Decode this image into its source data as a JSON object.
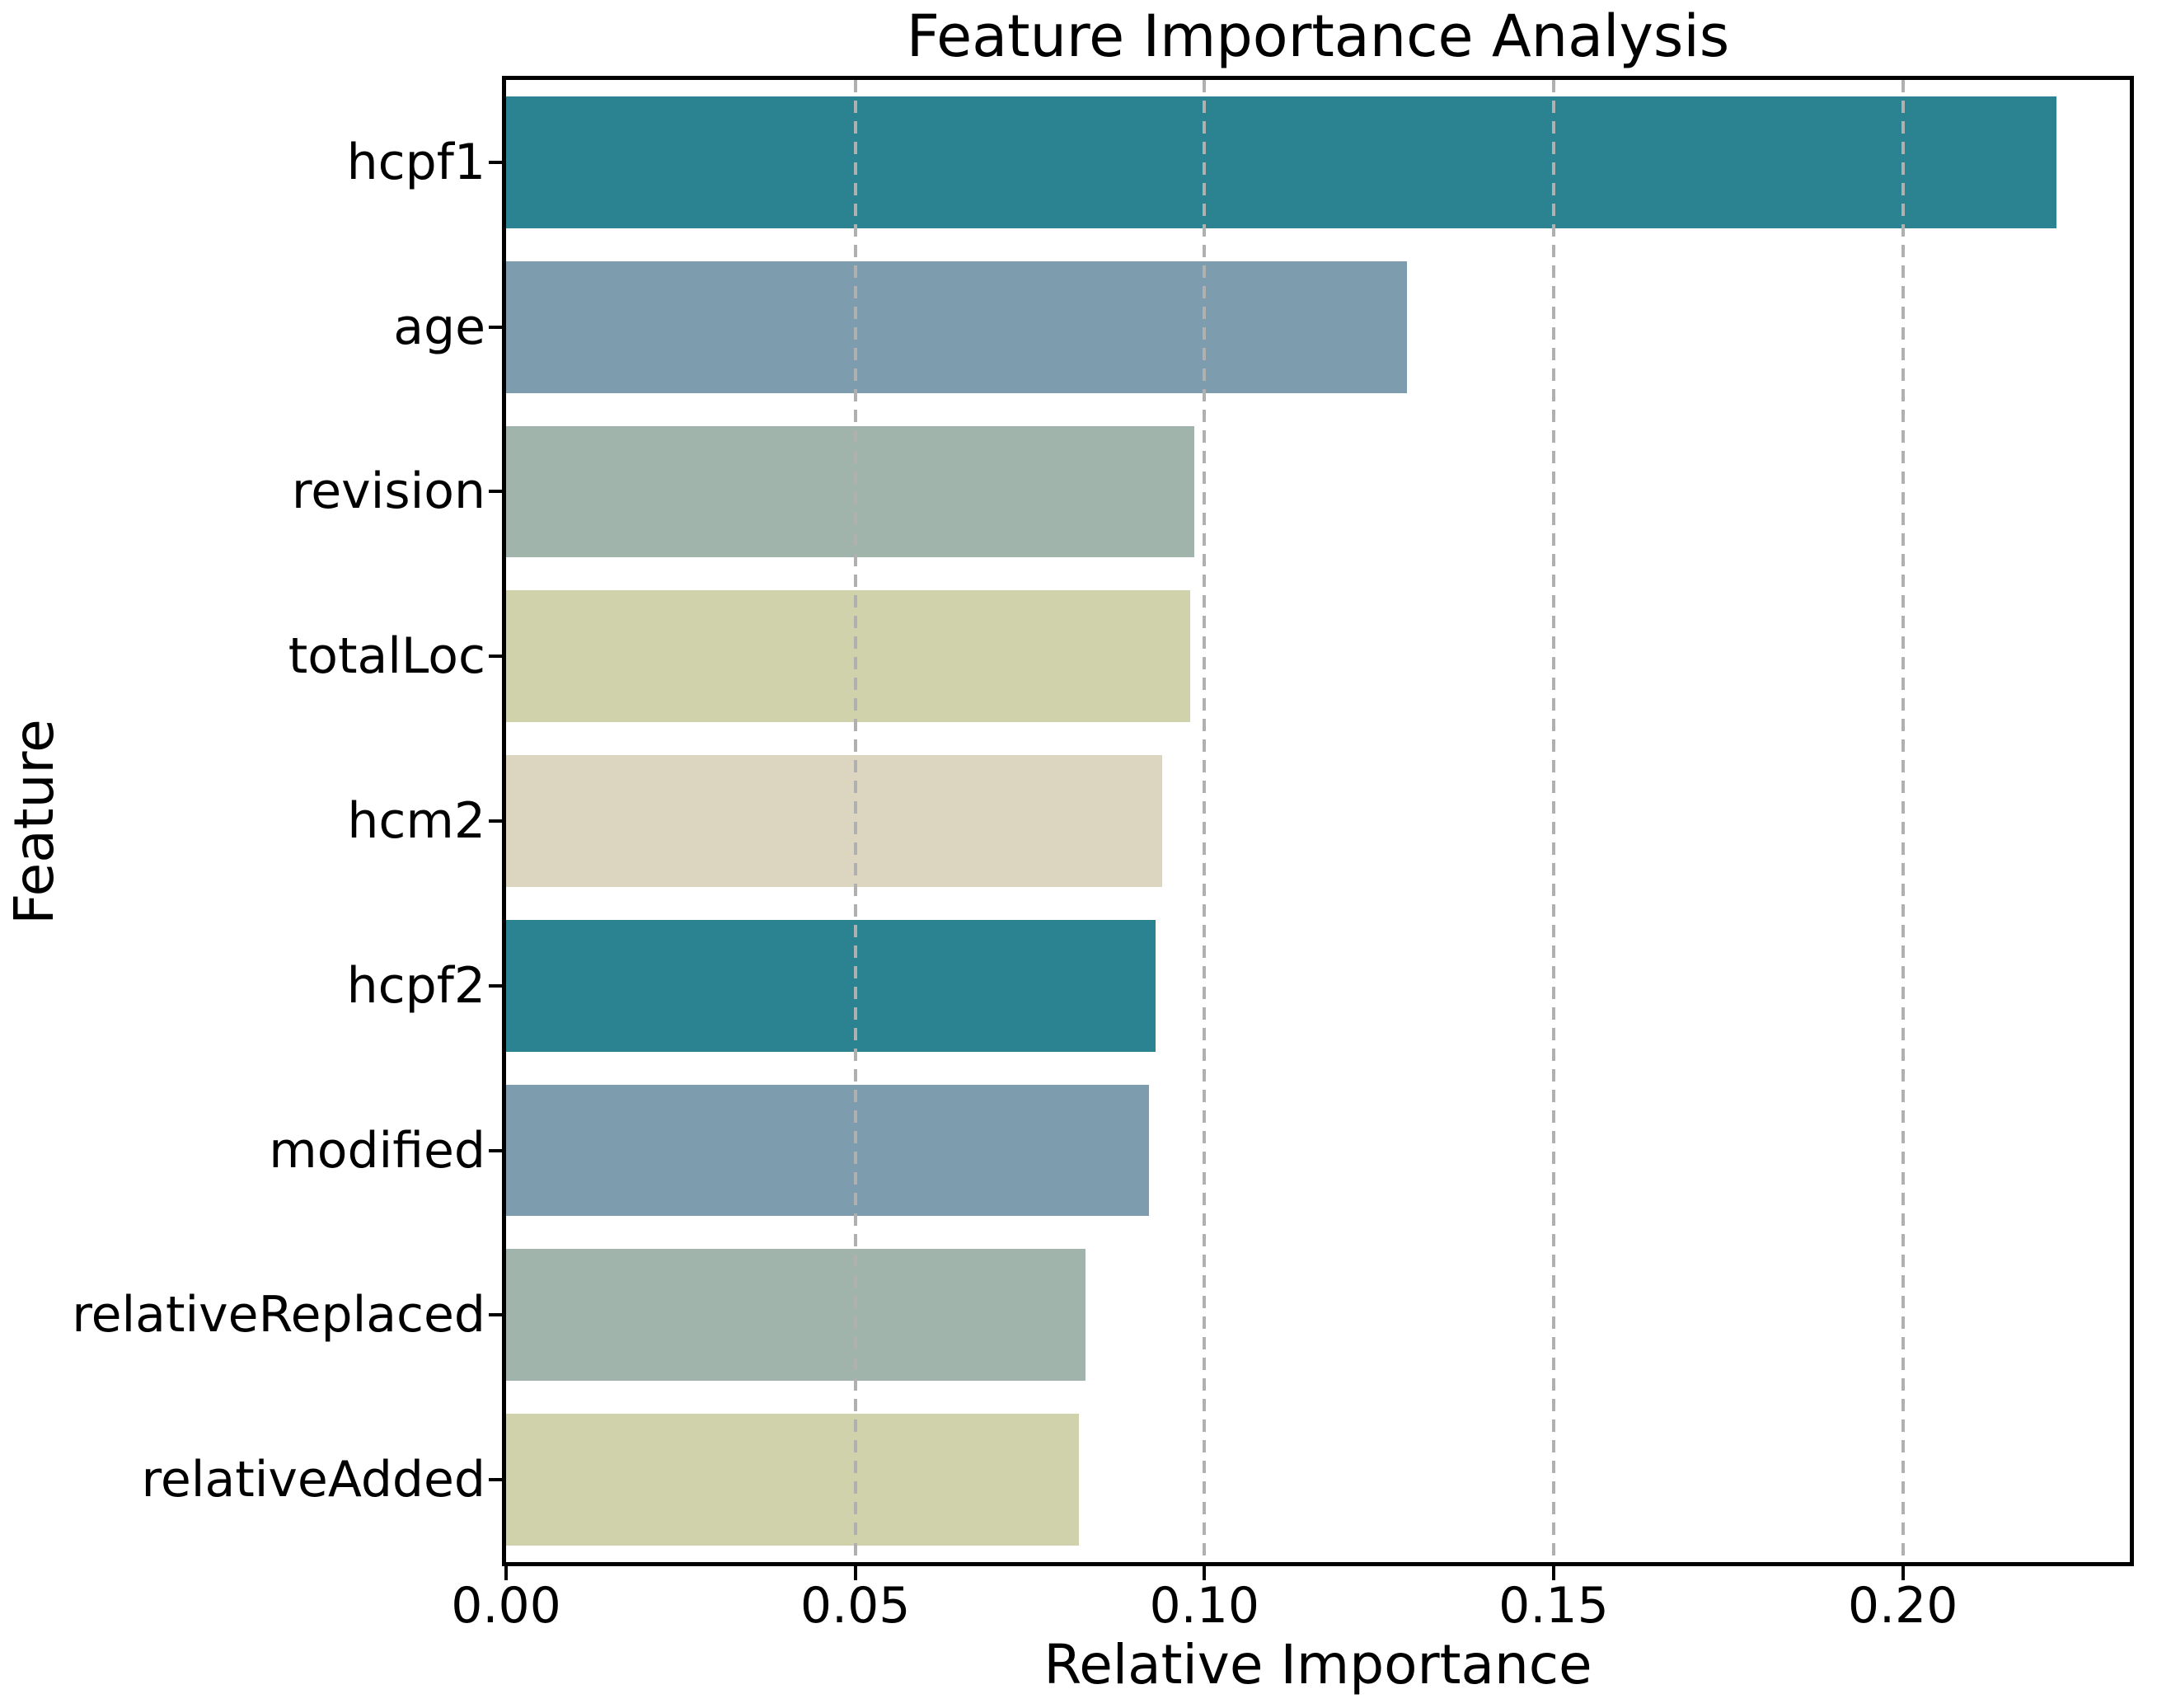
{
  "chart_data": {
    "type": "bar",
    "orientation": "horizontal",
    "title": "Feature Importance Analysis",
    "xlabel": "Relative Importance",
    "ylabel": "Feature",
    "categories": [
      "hcpf1",
      "age",
      "revision",
      "totalLoc",
      "hcm2",
      "hcpf2",
      "modified",
      "relativeReplaced",
      "relativeAdded"
    ],
    "values": [
      0.222,
      0.129,
      0.0985,
      0.098,
      0.094,
      0.093,
      0.092,
      0.083,
      0.082
    ],
    "bar_colors": [
      "#2b8291",
      "#7d9cae",
      "#a1b4ab",
      "#cfd2aa",
      "#dcd6c0",
      "#2b8291",
      "#7d9cae",
      "#a1b4ab",
      "#cfd2aa"
    ],
    "xlim": [
      0,
      0.2325
    ],
    "xticks": [
      0.0,
      0.05,
      0.1,
      0.15,
      0.2
    ],
    "xtick_labels": [
      "0.00",
      "0.05",
      "0.10",
      "0.15",
      "0.20"
    ],
    "grid": "vertical-dashed-over-bars",
    "gridline_color": "#b0b0b0",
    "spine_color": "#000000",
    "text_color": "#000000",
    "legend": "none"
  }
}
